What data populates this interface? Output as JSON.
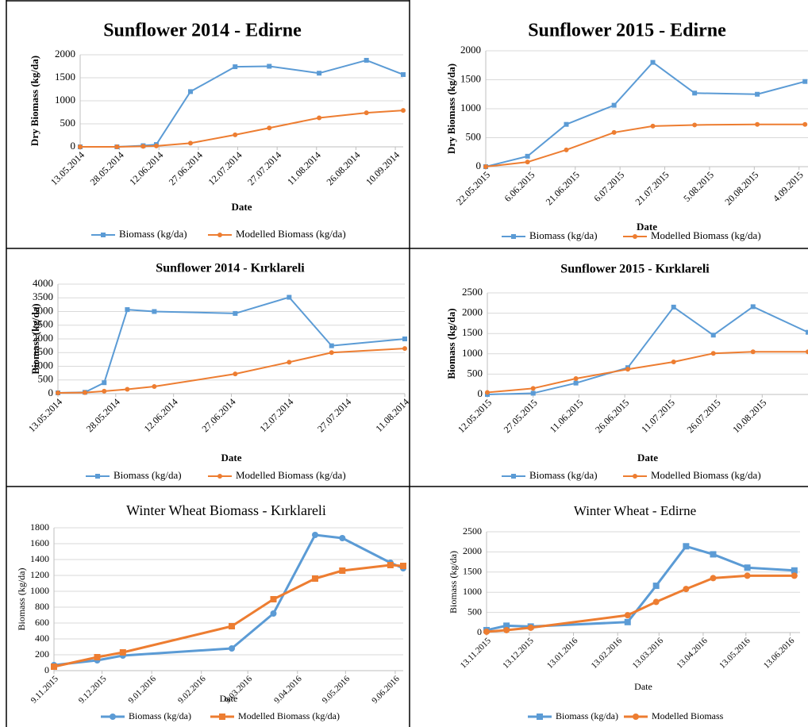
{
  "chart_data": [
    {
      "type": "line",
      "title": "Sunflower 2014 - Edirne",
      "x_label": "Date",
      "y_label": "Dry Biomass (kg/da)",
      "x": [
        "2014-05-13",
        "2014-05-27",
        "2014-06-06",
        "2014-06-11",
        "2014-06-24",
        "2014-07-11",
        "2014-07-24",
        "2014-08-12",
        "2014-08-30",
        "2014-09-13"
      ],
      "series": [
        {
          "name": "Biomass (kg/da)",
          "color": "#5b9bd5",
          "marker": "square",
          "values": [
            0,
            0,
            25,
            50,
            1200,
            1740,
            1750,
            1600,
            1880,
            1570
          ]
        },
        {
          "name": "Modelled Biomass (kg/da)",
          "color": "#ed7d31",
          "marker": "circle",
          "values": [
            0,
            0,
            10,
            20,
            80,
            260,
            410,
            630,
            740,
            790
          ]
        }
      ],
      "xlim": [
        "2014-05-13",
        "2014-09-13"
      ],
      "xticks": [
        {
          "value": "2014-05-13",
          "label": "13.05.2014"
        },
        {
          "value": "2014-05-28",
          "label": "28.05.2014"
        },
        {
          "value": "2014-06-12",
          "label": "12.06.2014"
        },
        {
          "value": "2014-06-27",
          "label": "27.06.2014"
        },
        {
          "value": "2014-07-12",
          "label": "12.07.2014"
        },
        {
          "value": "2014-07-27",
          "label": "27.07.2014"
        },
        {
          "value": "2014-08-11",
          "label": "11.08.2014"
        },
        {
          "value": "2014-08-26",
          "label": "26.08.2014"
        },
        {
          "value": "2014-09-10",
          "label": "10.09.2014"
        }
      ],
      "ylim": [
        0,
        2000
      ],
      "yticks": [
        0,
        500,
        1000,
        1500,
        2000
      ],
      "grid": true
    },
    {
      "type": "line",
      "title": "Sunflower 2015 - Edirne",
      "x_label": "Date",
      "y_label": "Dry Biomass (kg/da)",
      "x": [
        "2015-05-22",
        "2015-06-05",
        "2015-06-18",
        "2015-07-04",
        "2015-07-17",
        "2015-07-31",
        "2015-08-21",
        "2015-09-06"
      ],
      "series": [
        {
          "name": "Biomass (kg/da)",
          "color": "#5b9bd5",
          "marker": "square",
          "values": [
            0,
            180,
            730,
            1060,
            1800,
            1270,
            1250,
            1470
          ]
        },
        {
          "name": "Modelled Biomass (kg/da)",
          "color": "#ed7d31",
          "marker": "circle",
          "values": [
            0,
            80,
            290,
            590,
            700,
            720,
            730,
            730
          ]
        }
      ],
      "xlim": [
        "2015-05-22",
        "2015-09-07"
      ],
      "xticks": [
        {
          "value": "2015-05-22",
          "label": "22.05.2015"
        },
        {
          "value": "2015-06-06",
          "label": "6.06.2015"
        },
        {
          "value": "2015-06-21",
          "label": "21.06.2015"
        },
        {
          "value": "2015-07-06",
          "label": "6.07.2015"
        },
        {
          "value": "2015-07-21",
          "label": "21.07.2015"
        },
        {
          "value": "2015-08-05",
          "label": "5.08.2015"
        },
        {
          "value": "2015-08-20",
          "label": "20.08.2015"
        },
        {
          "value": "2015-09-04",
          "label": "4.09.2015"
        }
      ],
      "ylim": [
        0,
        2000
      ],
      "yticks": [
        0,
        500,
        1000,
        1500,
        2000
      ],
      "grid": true
    },
    {
      "type": "line",
      "title": "Sunflower 2014 - Kırklareli",
      "x_label": "Date",
      "y_label": "Biomass (kg/da)",
      "x": [
        "2014-05-13",
        "2014-05-20",
        "2014-05-25",
        "2014-05-31",
        "2014-06-07",
        "2014-06-28",
        "2014-07-12",
        "2014-07-23",
        "2014-08-11"
      ],
      "series": [
        {
          "name": "Biomass (kg/da)",
          "color": "#5b9bd5",
          "marker": "square",
          "values": [
            30,
            50,
            400,
            3070,
            3000,
            2930,
            3520,
            1750,
            2000
          ]
        },
        {
          "name": "Modelled Biomass (kg/da)",
          "color": "#ed7d31",
          "marker": "circle",
          "values": [
            30,
            40,
            90,
            160,
            260,
            720,
            1150,
            1500,
            1650
          ]
        }
      ],
      "xlim": [
        "2014-05-13",
        "2014-08-11"
      ],
      "xticks": [
        {
          "value": "2014-05-13",
          "label": "13.05.2014"
        },
        {
          "value": "2014-05-28",
          "label": "28.05.2014"
        },
        {
          "value": "2014-06-12",
          "label": "12.06.2014"
        },
        {
          "value": "2014-06-27",
          "label": "27.06.2014"
        },
        {
          "value": "2014-07-12",
          "label": "12.07.2014"
        },
        {
          "value": "2014-07-27",
          "label": "27.07.2014"
        },
        {
          "value": "2014-08-11",
          "label": "11.08.2014"
        }
      ],
      "ylim": [
        0,
        4000
      ],
      "yticks": [
        0,
        500,
        1000,
        1500,
        2000,
        2500,
        3000,
        3500,
        4000
      ],
      "grid": true
    },
    {
      "type": "line",
      "title": "Sunflower 2015 - Kırklareli",
      "x_label": "Date",
      "y_label": "Biomass (kg/da)",
      "x": [
        "2015-05-12",
        "2015-05-27",
        "2015-06-10",
        "2015-06-27",
        "2015-07-12",
        "2015-07-25",
        "2015-08-07",
        "2015-08-25"
      ],
      "series": [
        {
          "name": "Biomass (kg/da)",
          "color": "#5b9bd5",
          "marker": "square",
          "values": [
            0,
            30,
            280,
            660,
            2150,
            1460,
            2160,
            1530
          ]
        },
        {
          "name": "Modelled Biomass (kg/da)",
          "color": "#ed7d31",
          "marker": "circle",
          "values": [
            50,
            150,
            390,
            620,
            800,
            1010,
            1050,
            1050
          ]
        }
      ],
      "xlim": [
        "2015-05-12",
        "2015-08-25"
      ],
      "xticks": [
        {
          "value": "2015-05-12",
          "label": "12.05.2015"
        },
        {
          "value": "2015-05-27",
          "label": "27.05.2015"
        },
        {
          "value": "2015-06-11",
          "label": "11.06.2015"
        },
        {
          "value": "2015-06-26",
          "label": "26.06.2015"
        },
        {
          "value": "2015-07-11",
          "label": "11.07.2015"
        },
        {
          "value": "2015-07-26",
          "label": "26.07.2015"
        },
        {
          "value": "2015-08-10",
          "label": "10.08.2015"
        }
      ],
      "ylim": [
        0,
        2500
      ],
      "yticks": [
        0,
        500,
        1000,
        1500,
        2000,
        2500
      ],
      "grid": true
    },
    {
      "type": "line",
      "title": "Winter Wheat Biomass - Kırklareli",
      "x_label": "Date",
      "y_label": "Biomass (kg/da)",
      "x": [
        "2015-11-09",
        "2015-12-06",
        "2015-12-22",
        "2016-02-28",
        "2016-03-25",
        "2016-04-20",
        "2016-05-07",
        "2016-06-06",
        "2016-06-14"
      ],
      "series": [
        {
          "name": "Biomass (kg/da)",
          "color": "#5b9bd5",
          "marker": "circle",
          "values": [
            70,
            130,
            190,
            280,
            720,
            1710,
            1670,
            1360,
            1290
          ]
        },
        {
          "name": "Modelled Biomass (kg/da)",
          "color": "#ed7d31",
          "marker": "square",
          "values": [
            50,
            170,
            230,
            560,
            900,
            1160,
            1260,
            1330,
            1320
          ]
        }
      ],
      "xlim": [
        "2015-11-09",
        "2016-06-14"
      ],
      "xticks": [
        {
          "value": "2015-11-09",
          "label": "9.11.2015"
        },
        {
          "value": "2015-12-09",
          "label": "9.12.2015"
        },
        {
          "value": "2016-01-09",
          "label": "9.01.2016"
        },
        {
          "value": "2016-02-09",
          "label": "9.02.2016"
        },
        {
          "value": "2016-03-09",
          "label": "9.03.2016"
        },
        {
          "value": "2016-04-09",
          "label": "9.04.2016"
        },
        {
          "value": "2016-05-09",
          "label": "9.05.2016"
        },
        {
          "value": "2016-06-09",
          "label": "9.06.2016"
        }
      ],
      "ylim": [
        0,
        1800
      ],
      "yticks": [
        0,
        200,
        400,
        600,
        800,
        1000,
        1200,
        1400,
        1600,
        1800
      ],
      "grid": true
    },
    {
      "type": "line",
      "title": "Winter Wheat - Edirne",
      "x_label": "Date",
      "y_label": "Biomass (kg/da)",
      "x": [
        "2015-11-13",
        "2015-11-27",
        "2015-12-14",
        "2016-02-20",
        "2016-03-11",
        "2016-04-01",
        "2016-04-20",
        "2016-05-14",
        "2016-06-16"
      ],
      "series": [
        {
          "name": "Biomass (kg/da)",
          "color": "#5b9bd5",
          "marker": "square",
          "values": [
            60,
            170,
            150,
            260,
            1160,
            2140,
            1940,
            1610,
            1540
          ]
        },
        {
          "name": "Modelled Biomass",
          "color": "#ed7d31",
          "marker": "circle",
          "values": [
            20,
            60,
            120,
            430,
            760,
            1080,
            1350,
            1410,
            1410
          ]
        }
      ],
      "xlim": [
        "2015-11-13",
        "2016-06-20"
      ],
      "xticks": [
        {
          "value": "2015-11-13",
          "label": "13.11.2015"
        },
        {
          "value": "2015-12-13",
          "label": "13.12.2015"
        },
        {
          "value": "2016-01-13",
          "label": "13.01.2016"
        },
        {
          "value": "2016-02-13",
          "label": "13.02.2016"
        },
        {
          "value": "2016-03-13",
          "label": "13.03.2016"
        },
        {
          "value": "2016-04-13",
          "label": "13.04.2016"
        },
        {
          "value": "2016-05-13",
          "label": "13.05.2016"
        },
        {
          "value": "2016-06-13",
          "label": "13.06.2016"
        }
      ],
      "ylim": [
        0,
        2500
      ],
      "yticks": [
        0,
        500,
        1000,
        1500,
        2000,
        2500
      ],
      "grid": true
    }
  ]
}
